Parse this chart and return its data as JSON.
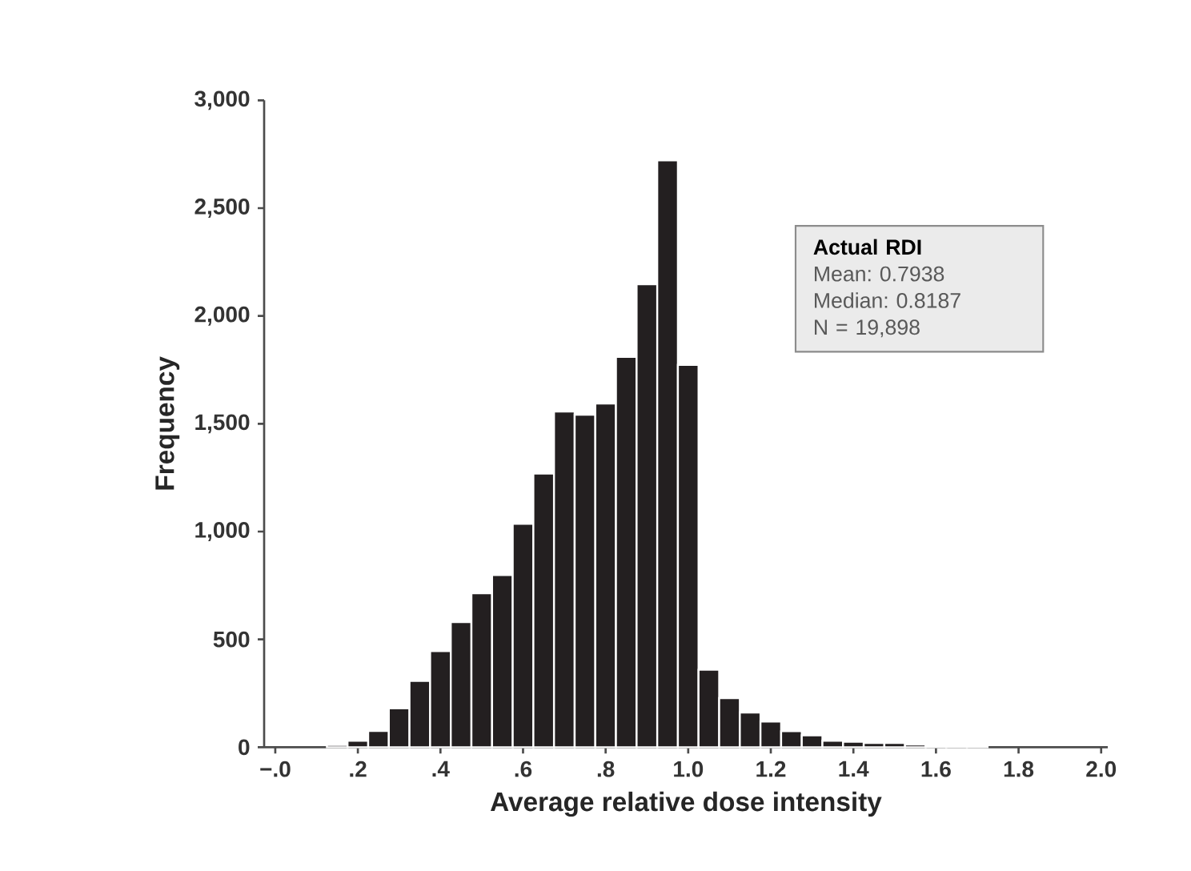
{
  "chart_data": {
    "type": "histogram",
    "xlabel": "Average relative dose intensity",
    "ylabel": "Frequency",
    "bins": [
      0.125,
      0.175,
      0.225,
      0.275,
      0.325,
      0.375,
      0.425,
      0.475,
      0.525,
      0.575,
      0.625,
      0.675,
      0.725,
      0.775,
      0.825,
      0.875,
      0.925,
      0.975,
      1.025,
      1.075,
      1.125,
      1.175,
      1.225,
      1.275,
      1.325,
      1.375,
      1.425,
      1.475,
      1.525,
      1.575,
      1.625,
      1.675,
      1.725
    ],
    "values": [
      10,
      30,
      75,
      180,
      307,
      446,
      580,
      714,
      798,
      1036,
      1269,
      1557,
      1542,
      1594,
      1810,
      2147,
      2722,
      1773,
      359,
      228,
      161,
      119,
      74,
      55,
      30,
      25,
      20,
      20,
      12,
      7,
      7,
      5
    ],
    "color": "#231f20",
    "xlim": [
      -0.027,
      2.016
    ],
    "ylim": [
      0,
      3000
    ],
    "xticks": [
      {
        "value": 0,
        "label": "−.0"
      },
      {
        "value": 0.2,
        "label": ".2"
      },
      {
        "value": 0.4,
        "label": ".4"
      },
      {
        "value": 0.6,
        "label": ".6"
      },
      {
        "value": 0.8,
        "label": ".8"
      },
      {
        "value": 1,
        "label": "1.0"
      },
      {
        "value": 1.2,
        "label": "1.2"
      },
      {
        "value": 1.4,
        "label": "1.4"
      },
      {
        "value": 1.6,
        "label": "1.6"
      },
      {
        "value": 1.8,
        "label": "1.8"
      },
      {
        "value": 2,
        "label": "2.0"
      }
    ],
    "yticks": [
      0,
      500,
      {
        "value": 1000,
        "label": "1,000"
      },
      {
        "value": 1500,
        "label": "1,500"
      },
      {
        "value": 2000,
        "label": "2,000"
      },
      {
        "value": 2500,
        "label": "2,500"
      },
      {
        "value": 3000,
        "label": "3,000"
      }
    ],
    "annotations": [
      "Actual RDI",
      "Mean: 0.7938",
      "Median: 0.8187",
      "N = 19,898"
    ],
    "grid": false
  }
}
